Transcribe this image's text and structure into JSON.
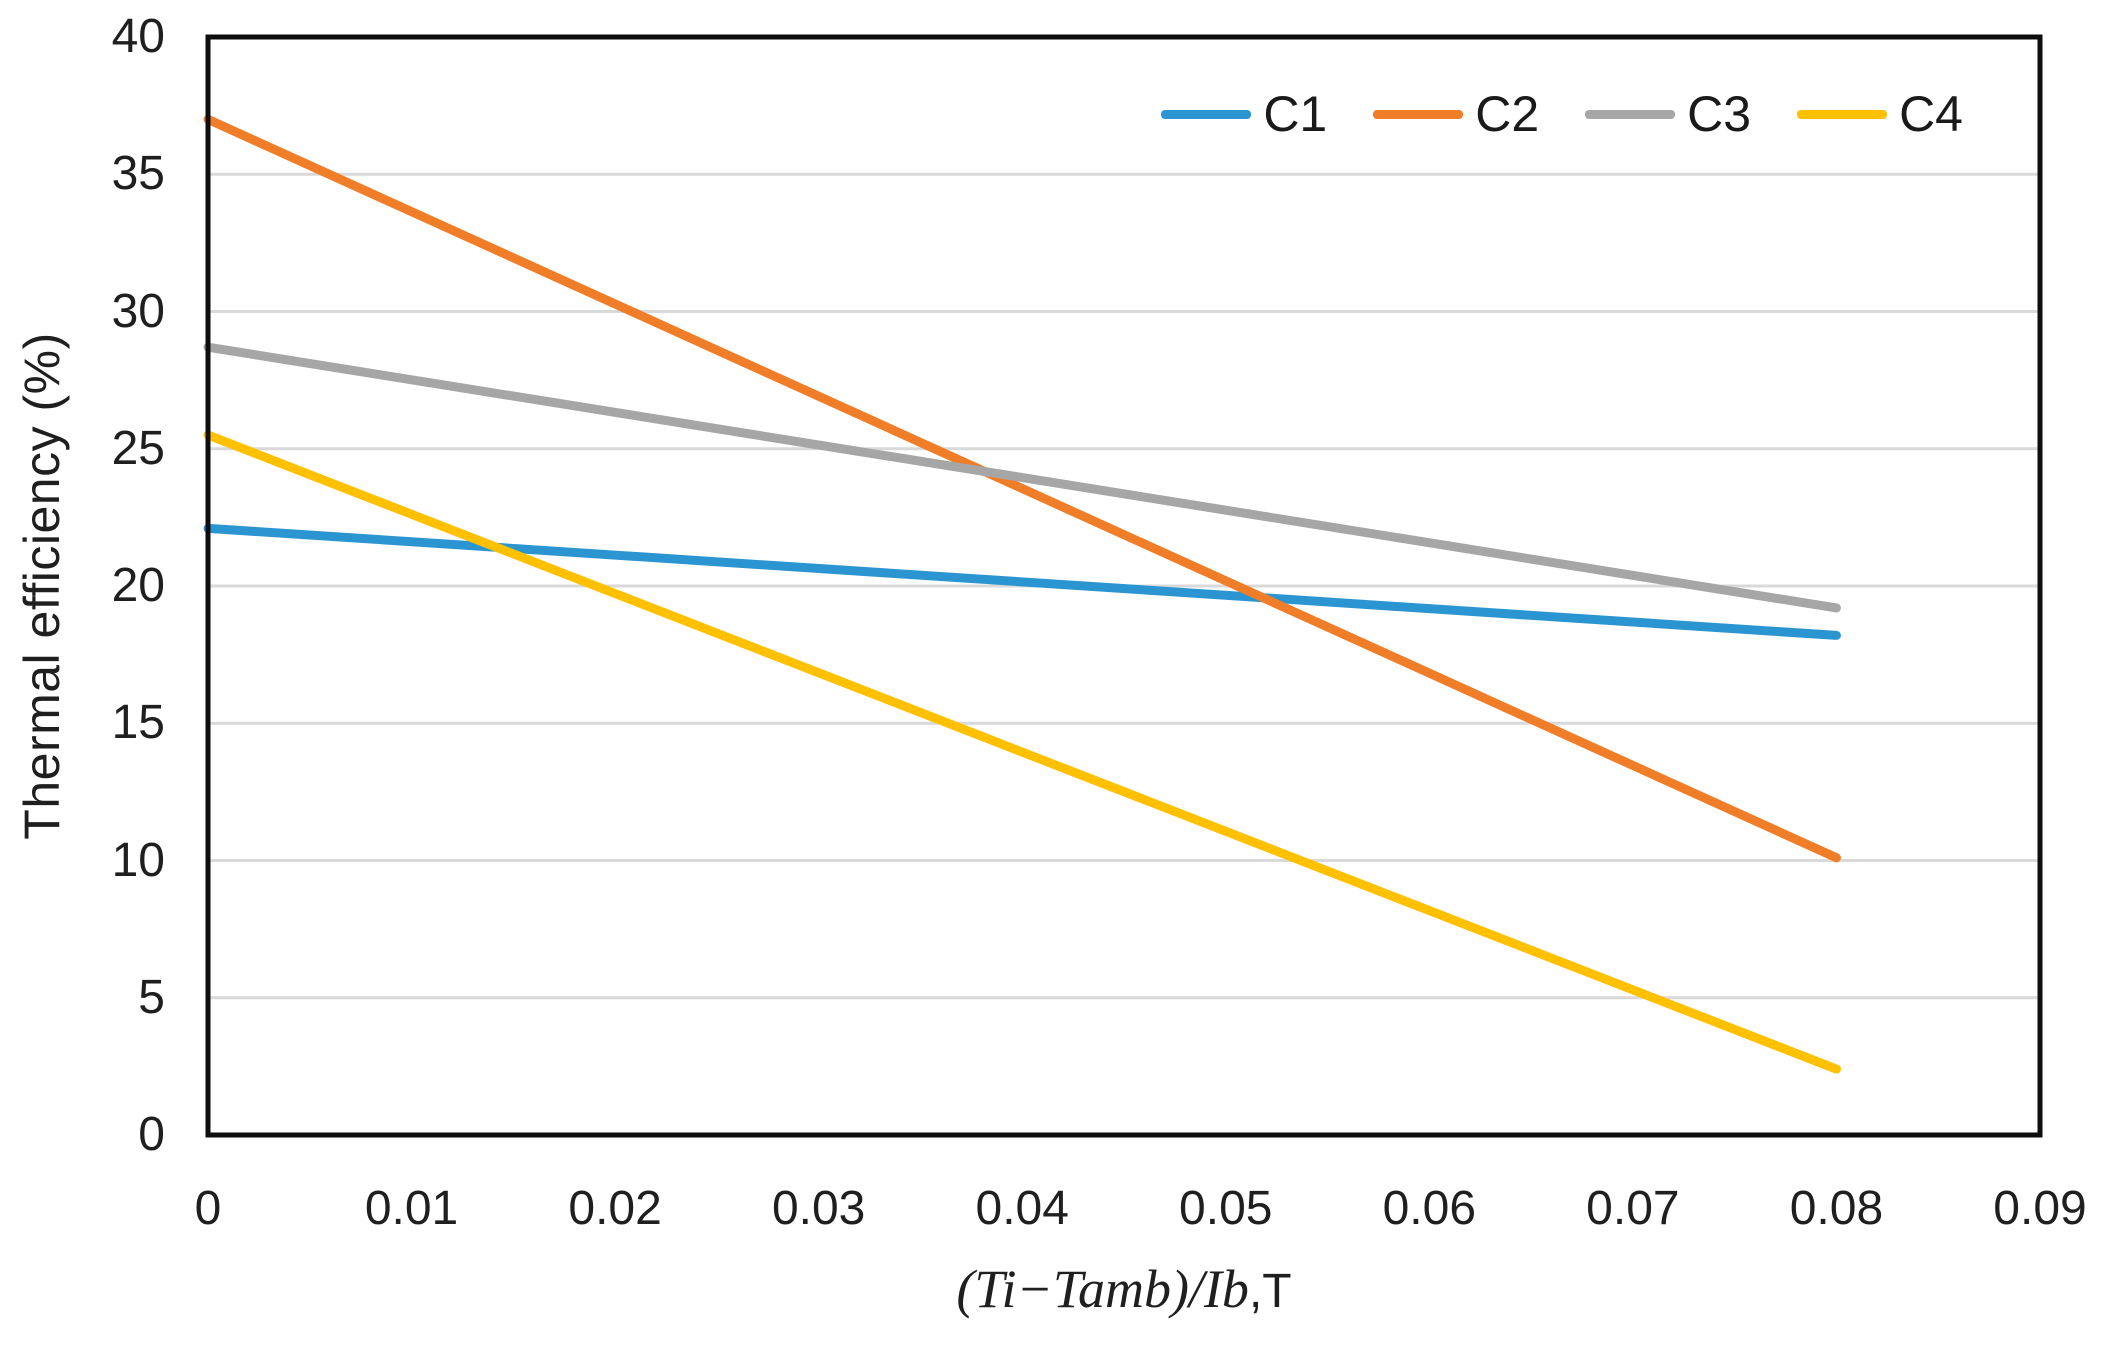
{
  "figure": {
    "background": "#ffffff",
    "text_color": "#1f1f1f"
  },
  "chart_data": {
    "type": "line",
    "title": "",
    "xlabel": "(Ti−Tamb)/Ib,T",
    "xlabel_parts": {
      "italic": "(Ti−Tamb)/Ib",
      "upright": ",T"
    },
    "ylabel": "Thermal efficiency (%)",
    "xlim": [
      0,
      0.09
    ],
    "ylim": [
      0,
      40
    ],
    "x_ticks": [
      "0",
      "0.01",
      "0.02",
      "0.03",
      "0.04",
      "0.05",
      "0.06",
      "0.07",
      "0.08",
      "0.09"
    ],
    "y_ticks": [
      "0",
      "5",
      "10",
      "15",
      "20",
      "25",
      "30",
      "35",
      "40"
    ],
    "grid": "horizontal",
    "gridline_color": "#d9d9d9",
    "axis_border_color": "#0d0d0d",
    "legend_position": "top-right-inside",
    "series": [
      {
        "name": "C1",
        "color": "#2b95d2",
        "x": [
          0,
          0.08
        ],
        "y": [
          22.1,
          18.2
        ]
      },
      {
        "name": "C2",
        "color": "#f07d28",
        "x": [
          0,
          0.08
        ],
        "y": [
          37.0,
          10.1
        ]
      },
      {
        "name": "C3",
        "color": "#a6a6a6",
        "x": [
          0,
          0.08
        ],
        "y": [
          28.7,
          19.2
        ]
      },
      {
        "name": "C4",
        "color": "#ffc000",
        "x": [
          0,
          0.08
        ],
        "y": [
          25.5,
          2.4
        ]
      }
    ]
  }
}
